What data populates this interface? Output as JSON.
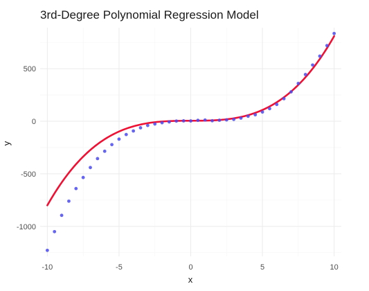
{
  "chart_data": {
    "type": "scatter",
    "title": "3rd-Degree Polynomial Regression Model",
    "xlabel": "x",
    "ylabel": "y",
    "xlim": [
      -10.5,
      10.5
    ],
    "ylim": [
      -1285,
      890
    ],
    "x_ticks": [
      -10,
      -5,
      0,
      5,
      10
    ],
    "y_ticks": [
      -1000,
      -500,
      0,
      500
    ],
    "x_tick_labels": [
      "-10",
      "-5",
      "0",
      "5",
      "10"
    ],
    "y_tick_labels": [
      "-1000",
      "-500",
      "0",
      "500"
    ],
    "grid": true,
    "legend": "none",
    "colors": {
      "points": "#4a4aee",
      "fit_line": "#ee1133",
      "grid_major": "#ebebeb",
      "grid_minor": "#f5f5f5"
    },
    "series": [
      {
        "type": "scatter",
        "x": [
          -10,
          -9.5,
          -9,
          -8.5,
          -8,
          -7.5,
          -7,
          -6.5,
          -6,
          -5.5,
          -5,
          -4.5,
          -4,
          -3.5,
          -3,
          -2.5,
          -2,
          -1.5,
          -1,
          -0.5,
          0,
          0.5,
          1,
          1.5,
          2,
          2.5,
          3,
          3.5,
          4,
          4.5,
          5,
          5.5,
          6,
          6.5,
          7,
          7.5,
          8,
          8.5,
          9,
          9.5,
          10
        ],
        "y": [
          -1228,
          -1050,
          -895,
          -760,
          -640,
          -535,
          -440,
          -355,
          -285,
          -222,
          -170,
          -126,
          -92,
          -62,
          -40,
          -26,
          -14,
          -6,
          2,
          4,
          3,
          9,
          12,
          5,
          10,
          13,
          18,
          30,
          48,
          62,
          88,
          120,
          160,
          215,
          280,
          360,
          445,
          535,
          620,
          720,
          835
        ]
      },
      {
        "type": "line",
        "coefficients": [
          5,
          0.5,
          0,
          0.8
        ]
      }
    ]
  }
}
